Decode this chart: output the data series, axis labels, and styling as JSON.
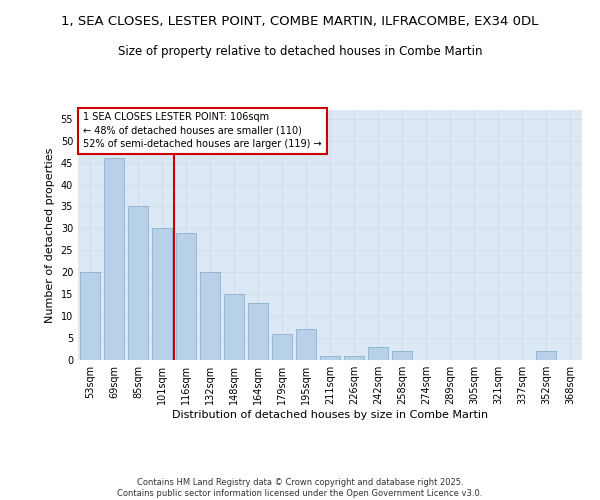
{
  "title_line1": "1, SEA CLOSES, LESTER POINT, COMBE MARTIN, ILFRACOMBE, EX34 0DL",
  "title_line2": "Size of property relative to detached houses in Combe Martin",
  "xlabel": "Distribution of detached houses by size in Combe Martin",
  "ylabel": "Number of detached properties",
  "categories": [
    "53sqm",
    "69sqm",
    "85sqm",
    "101sqm",
    "116sqm",
    "132sqm",
    "148sqm",
    "164sqm",
    "179sqm",
    "195sqm",
    "211sqm",
    "226sqm",
    "242sqm",
    "258sqm",
    "274sqm",
    "289sqm",
    "305sqm",
    "321sqm",
    "337sqm",
    "352sqm",
    "368sqm"
  ],
  "values": [
    20,
    46,
    35,
    30,
    29,
    20,
    15,
    13,
    6,
    7,
    1,
    1,
    3,
    2,
    0,
    0,
    0,
    0,
    0,
    2,
    0
  ],
  "bar_color": "#b8d0e8",
  "bar_edge_color": "#7aaac8",
  "grid_color": "#d0d8e4",
  "background_color": "#dce8f4",
  "annotation_text": "1 SEA CLOSES LESTER POINT: 106sqm\n← 48% of detached houses are smaller (110)\n52% of semi-detached houses are larger (119) →",
  "annotation_box_color": "#ffffff",
  "annotation_box_edge": "#cc0000",
  "vline_color": "#cc0000",
  "vline_position": 3.5,
  "ylim": [
    0,
    57
  ],
  "yticks": [
    0,
    5,
    10,
    15,
    20,
    25,
    30,
    35,
    40,
    45,
    50,
    55
  ],
  "footer_text": "Contains HM Land Registry data © Crown copyright and database right 2025.\nContains public sector information licensed under the Open Government Licence v3.0.",
  "title_fontsize": 9.5,
  "subtitle_fontsize": 8.5,
  "axis_label_fontsize": 8,
  "tick_fontsize": 7,
  "annotation_fontsize": 7,
  "footer_fontsize": 6
}
